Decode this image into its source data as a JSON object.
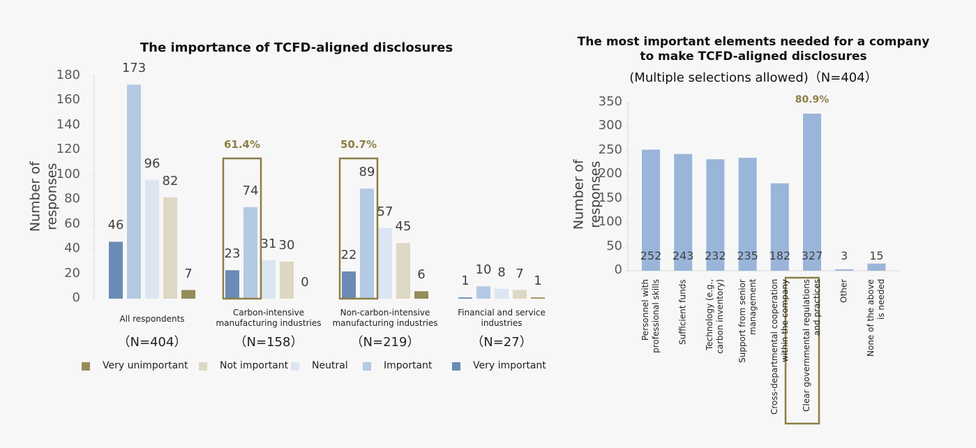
{
  "chart_data": [
    {
      "type": "grouped-bar",
      "title": "The importance of TCFD-aligned disclosures",
      "y_label": "Number of responses",
      "categories": [
        "All respondents",
        "Carbon-intensive\nmanufacturing industries",
        "Non-carbon-intensive\nmanufacturing industries",
        "Financial and service\nindustries"
      ],
      "sample_sizes": [
        "（N=404）",
        "（N=158）",
        "（N=219）",
        "（N=27）"
      ],
      "highlight_labels": [
        null,
        "61.4%",
        "50.7%",
        null
      ],
      "highlight_color": "#8c7e45",
      "series": [
        {
          "name": "Very unimportant",
          "color": "#968c58",
          "values": [
            7,
            0,
            6,
            1
          ]
        },
        {
          "name": "Not important",
          "color": "#ddd8c4",
          "values": [
            82,
            30,
            45,
            7
          ]
        },
        {
          "name": "Neutral",
          "color": "#dce5f2",
          "values": [
            96,
            31,
            57,
            8
          ]
        },
        {
          "name": "Important",
          "color": "#b4c9e3",
          "values": [
            173,
            74,
            89,
            10
          ]
        },
        {
          "name": "Very important",
          "color": "#6a8bb5",
          "values": [
            46,
            23,
            22,
            1
          ]
        }
      ],
      "ylim": [
        0,
        180
      ],
      "yticks": [
        0,
        20,
        40,
        60,
        80,
        100,
        120,
        140,
        160,
        180
      ]
    },
    {
      "type": "bar",
      "title": "The most important elements needed for a company\nto make TCFD-aligned disclosures",
      "subtitle": "(Multiple selections allowed)（N=404）",
      "y_label": "Number of responses",
      "categories": [
        "Personnel with\nprofessional skills",
        "Sufficient funds",
        "Technology (e.g.,\ncarbon inventory)",
        "Support from senior\nmanagement",
        "Cross-departmental cooperation\nwithin the company",
        "Clear governmental regulations\nand practices",
        "Other",
        "None of the above\nis needed"
      ],
      "values": [
        252,
        243,
        232,
        235,
        182,
        327,
        3,
        15
      ],
      "color": "#9ab5da",
      "highlight_labels": [
        null,
        null,
        null,
        null,
        null,
        "80.9%",
        null,
        null
      ],
      "highlight_color": "#8c7e45",
      "ylim": [
        0,
        350
      ],
      "yticks": [
        0,
        50,
        100,
        150,
        200,
        250,
        300,
        350
      ]
    }
  ]
}
